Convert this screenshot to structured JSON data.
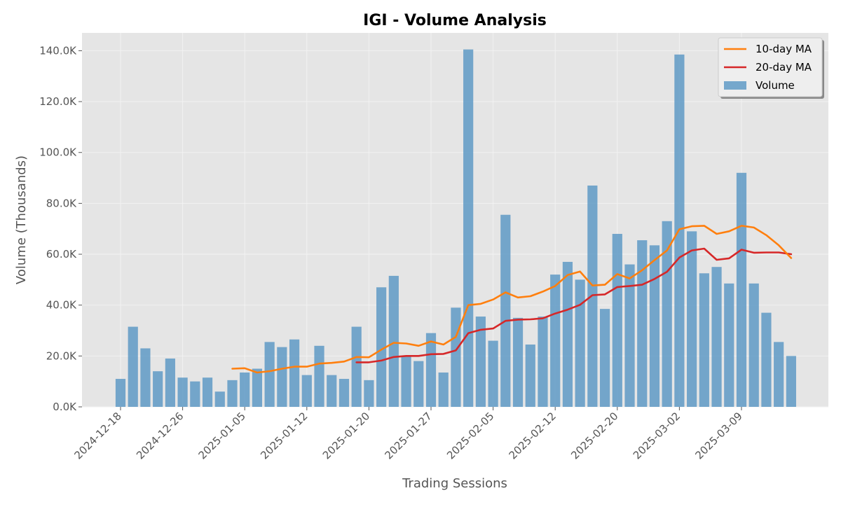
{
  "chart_data": {
    "type": "bar",
    "title": "IGI - Volume Analysis",
    "xlabel": "Trading Sessions",
    "ylabel": "Volume (Thousands)",
    "ylim": [
      0,
      147000
    ],
    "y_ticks": [
      0,
      20000,
      40000,
      60000,
      80000,
      100000,
      120000,
      140000
    ],
    "y_tick_labels": [
      "0.0K",
      "20.0K",
      "40.0K",
      "60.0K",
      "80.0K",
      "100.0K",
      "120.0K",
      "140.0K"
    ],
    "x_tick_labels": [
      {
        "session": 0,
        "label": "2024-12-18"
      },
      {
        "session": 5,
        "label": "2024-12-26"
      },
      {
        "session": 10,
        "label": "2025-01-05"
      },
      {
        "session": 15,
        "label": "2025-01-12"
      },
      {
        "session": 20,
        "label": "2025-01-20"
      },
      {
        "session": 25,
        "label": "2025-01-27"
      },
      {
        "session": 30,
        "label": "2025-02-05"
      },
      {
        "session": 35,
        "label": "2025-02-12"
      },
      {
        "session": 40,
        "label": "2025-02-20"
      },
      {
        "session": 45,
        "label": "2025-03-02"
      },
      {
        "session": 50,
        "label": "2025-03-09"
      }
    ],
    "grid": true,
    "legend_position": "top-right",
    "colors": {
      "background": "#e5e5e5",
      "grid": "#f2f2f2",
      "volume": "#5f9ac5",
      "ma10": "#ff7f0e",
      "ma20": "#d62728"
    },
    "series": [
      {
        "name": "Volume",
        "type": "bar",
        "values": [
          11000,
          31500,
          23000,
          14000,
          19000,
          11500,
          10000,
          11500,
          6000,
          10500,
          13500,
          15000,
          25500,
          23500,
          26500,
          12500,
          24000,
          12500,
          11000,
          31500,
          10500,
          47000,
          51500,
          20000,
          18000,
          29000,
          13500,
          39000,
          140500,
          35500,
          26000,
          75500,
          35000,
          24500,
          35500,
          52000,
          57000,
          50000,
          87000,
          38500,
          68000,
          56000,
          65500,
          63500,
          73000,
          138500,
          69000,
          52500,
          55000,
          48500,
          92000,
          48500,
          37000,
          25500,
          20000
        ]
      },
      {
        "name": "10-day MA",
        "type": "line",
        "start_session": 9,
        "values": [
          15000,
          15200,
          13500,
          14000,
          15000,
          15800,
          15800,
          17000,
          17300,
          17800,
          19600,
          19500,
          22500,
          25200,
          24900,
          24000,
          25700,
          24500,
          27500,
          40000,
          40500,
          42200,
          45000,
          43000,
          43500,
          45300,
          47500,
          51800,
          53200,
          47700,
          48000,
          52200,
          50500,
          53700,
          57700,
          61500,
          69800,
          71000,
          71200,
          68000,
          69000,
          71200,
          70500,
          67500,
          63500,
          58500
        ]
      },
      {
        "name": "20-day MA",
        "type": "line",
        "start_session": 19,
        "values": [
          17500,
          17500,
          18200,
          19600,
          20000,
          20000,
          20700,
          20800,
          22200,
          29000,
          30300,
          30800,
          33800,
          34300,
          34400,
          34800,
          36700,
          38200,
          40100,
          43900,
          44200,
          47100,
          47500,
          48000,
          50300,
          53100,
          58700,
          61500,
          62200,
          57800,
          58400,
          61800,
          60600,
          60700,
          60700,
          60000
        ]
      }
    ]
  }
}
